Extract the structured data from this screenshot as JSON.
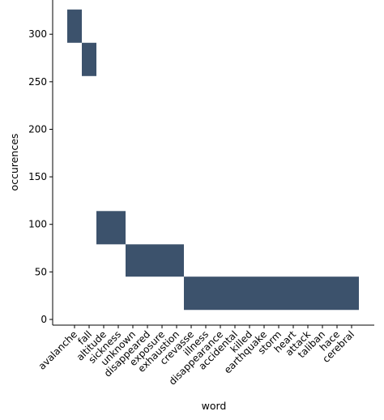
{
  "chart_data": {
    "type": "heatmap",
    "title": "",
    "xlabel": "word",
    "ylabel": "occurences",
    "categories": [
      "avalanche",
      "fall",
      "altitude",
      "sickness",
      "unknown",
      "disappeared",
      "exposure",
      "exhaustion",
      "crevasse",
      "illness",
      "disappearance",
      "accidental",
      "killed",
      "earthquake",
      "storm",
      "heart",
      "attack",
      "taliban",
      "hace",
      "cerebral"
    ],
    "bin_edges": [
      10,
      45,
      79,
      114,
      256,
      291,
      326
    ],
    "cells": [
      {
        "category_start": "avalanche",
        "category_end": "avalanche",
        "y_low": 291,
        "y_high": 326
      },
      {
        "category_start": "fall",
        "category_end": "fall",
        "y_low": 256,
        "y_high": 291
      },
      {
        "category_start": "altitude",
        "category_end": "sickness",
        "y_low": 79,
        "y_high": 114
      },
      {
        "category_start": "unknown",
        "category_end": "exhaustion",
        "y_low": 45,
        "y_high": 79
      },
      {
        "category_start": "crevasse",
        "category_end": "cerebral",
        "y_low": 10,
        "y_high": 45
      }
    ],
    "yticks": [
      0,
      50,
      100,
      150,
      200,
      250,
      300
    ],
    "ylim": [
      -6,
      336
    ],
    "grid": false,
    "colors": {
      "cell": "#3c526c",
      "axis": "#000000",
      "background": "#ffffff"
    }
  }
}
